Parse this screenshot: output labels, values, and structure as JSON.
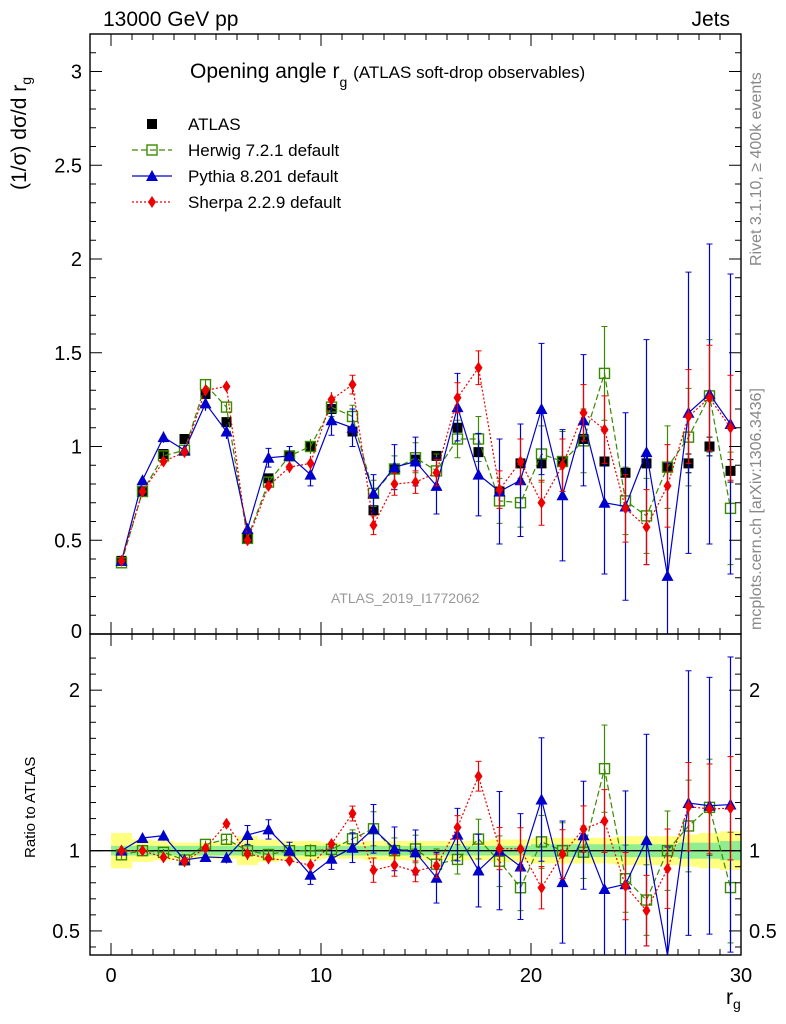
{
  "header": {
    "energy": "13000 GeV pp",
    "category": "Jets"
  },
  "side_notes": {
    "rivet": "Rivet 3.1.10, ≥ 400k events",
    "mcplots": "mcplots.cern.ch [arXiv:1306.3436]"
  },
  "chart_data": [
    {
      "type": "scatter",
      "title_main": "Opening angle r",
      "title_sub": "g",
      "title_extra": "(ATLAS soft-drop observables)",
      "ylabel_main": "(1/σ) dσ/d r",
      "ylabel_sub": "g",
      "xlim": [
        -1,
        30
      ],
      "ylim": [
        0,
        3.2
      ],
      "yticks": [
        {
          "v": 0.5,
          "label": "0.5"
        },
        {
          "v": 1,
          "label": "1"
        },
        {
          "v": 1.5,
          "label": "1.5"
        },
        {
          "v": 2,
          "label": "2"
        },
        {
          "v": 2.5,
          "label": "2.5"
        },
        {
          "v": 3,
          "label": "3"
        }
      ],
      "ytick_bottom_label": "0",
      "annotation": "ATLAS_2019_I1772062",
      "legend_position": "top-left",
      "x": [
        0.5,
        1.5,
        2.5,
        3.5,
        4.5,
        5.5,
        6.5,
        7.5,
        8.5,
        9.5,
        10.5,
        11.5,
        12.5,
        13.5,
        14.5,
        15.5,
        16.5,
        17.5,
        18.5,
        19.5,
        20.5,
        21.5,
        22.5,
        23.5,
        24.5,
        25.5,
        26.5,
        27.5,
        28.5,
        29.5
      ],
      "series": [
        {
          "name": "ATLAS",
          "color": "#000000",
          "marker": "square-filled",
          "line": "none",
          "values": [
            0.39,
            0.76,
            0.96,
            1.04,
            1.28,
            1.13,
            0.51,
            0.83,
            0.95,
            1.0,
            1.2,
            1.08,
            0.66,
            0.88,
            0.93,
            0.95,
            1.1,
            0.97,
            0.76,
            0.91,
            0.91,
            0.92,
            1.04,
            0.92,
            0.86,
            0.91,
            0.89,
            0.91,
            1.0,
            0.87
          ],
          "errors": [
            0.01,
            0.01,
            0.02,
            0.02,
            0.02,
            0.02,
            0.01,
            0.02,
            0.02,
            0.02,
            0.02,
            0.02,
            0.02,
            0.02,
            0.02,
            0.02,
            0.03,
            0.03,
            0.03,
            0.03,
            0.03,
            0.03,
            0.03,
            0.03,
            0.03,
            0.03,
            0.04,
            0.05,
            0.05,
            0.06
          ]
        },
        {
          "name": "Herwig 7.2.1 default",
          "color": "#3a8a00",
          "marker": "square-open",
          "line": "dashed",
          "values": [
            0.38,
            0.76,
            0.95,
            0.98,
            1.33,
            1.21,
            0.51,
            0.81,
            0.95,
            1.0,
            1.21,
            1.16,
            0.75,
            0.88,
            0.94,
            0.87,
            1.04,
            1.04,
            0.71,
            0.7,
            0.96,
            0.92,
            1.03,
            1.39,
            0.71,
            0.63,
            0.89,
            1.05,
            1.27,
            0.67
          ],
          "errors": [
            0.01,
            0.02,
            0.02,
            0.03,
            0.03,
            0.03,
            0.02,
            0.03,
            0.03,
            0.04,
            0.05,
            0.06,
            0.07,
            0.07,
            0.08,
            0.09,
            0.1,
            0.12,
            0.12,
            0.13,
            0.15,
            0.16,
            0.17,
            0.25,
            0.18,
            0.2,
            0.22,
            0.26,
            0.3,
            0.3
          ]
        },
        {
          "name": "Pythia 8.201 default",
          "color": "#0000cc",
          "marker": "triangle",
          "line": "solid",
          "values": [
            0.39,
            0.82,
            1.05,
            0.98,
            1.23,
            1.08,
            0.56,
            0.94,
            0.95,
            0.85,
            1.14,
            1.1,
            0.75,
            0.89,
            0.92,
            0.79,
            1.21,
            0.85,
            0.76,
            0.82,
            1.2,
            0.74,
            1.14,
            0.7,
            0.68,
            0.97,
            0.31,
            1.18,
            1.28,
            1.12
          ],
          "errors": [
            0.01,
            0.02,
            0.03,
            0.03,
            0.04,
            0.04,
            0.03,
            0.05,
            0.05,
            0.06,
            0.08,
            0.1,
            0.1,
            0.12,
            0.13,
            0.15,
            0.18,
            0.22,
            0.28,
            0.3,
            0.35,
            0.35,
            0.35,
            0.38,
            0.5,
            0.6,
            0.6,
            0.75,
            0.8,
            0.8
          ]
        },
        {
          "name": "Sherpa 2.2.9 default",
          "color": "#ee0000",
          "marker": "diamond",
          "line": "dotted",
          "values": [
            0.39,
            0.76,
            0.92,
            0.97,
            1.3,
            1.32,
            0.5,
            0.79,
            0.89,
            0.91,
            1.25,
            1.33,
            0.58,
            0.8,
            0.81,
            0.86,
            1.26,
            1.42,
            0.77,
            0.92,
            0.7,
            0.9,
            1.18,
            1.09,
            0.67,
            0.57,
            0.79,
            1.16,
            1.26,
            1.1
          ],
          "errors": [
            0.01,
            0.02,
            0.02,
            0.02,
            0.03,
            0.03,
            0.02,
            0.03,
            0.03,
            0.04,
            0.04,
            0.05,
            0.05,
            0.06,
            0.06,
            0.07,
            0.08,
            0.09,
            0.1,
            0.12,
            0.12,
            0.14,
            0.15,
            0.18,
            0.18,
            0.2,
            0.22,
            0.25,
            0.28,
            0.28
          ]
        }
      ]
    },
    {
      "type": "scatter",
      "ylabel": "Ratio to ATLAS",
      "xlabel_main": "r",
      "xlabel_sub": "g",
      "xlim": [
        -1,
        30
      ],
      "ylim": [
        0.35,
        2.35
      ],
      "yticks_left": [
        {
          "v": 0.5,
          "label": "0.5"
        },
        {
          "v": 1,
          "label": "1"
        },
        {
          "v": 2,
          "label": "2"
        }
      ],
      "yticks_right": [
        {
          "v": 0.5,
          "label": "0.5"
        },
        {
          "v": 1,
          "label": "1"
        },
        {
          "v": 2,
          "label": "2"
        }
      ],
      "xticks": [
        {
          "v": 0,
          "label": "0"
        },
        {
          "v": 10,
          "label": "10"
        },
        {
          "v": 20,
          "label": "20"
        },
        {
          "v": 30,
          "label": "30"
        }
      ],
      "band_inner_color": "#90ee90",
      "band_outer_color": "#ffff80",
      "band_inner": [
        0.03,
        0.03,
        0.03,
        0.03,
        0.03,
        0.03,
        0.03,
        0.03,
        0.03,
        0.03,
        0.03,
        0.03,
        0.03,
        0.03,
        0.03,
        0.03,
        0.03,
        0.03,
        0.03,
        0.03,
        0.04,
        0.04,
        0.04,
        0.04,
        0.04,
        0.04,
        0.04,
        0.05,
        0.05,
        0.06
      ],
      "band_outer": [
        0.11,
        0.07,
        0.06,
        0.05,
        0.05,
        0.05,
        0.09,
        0.07,
        0.06,
        0.06,
        0.05,
        0.05,
        0.06,
        0.06,
        0.06,
        0.06,
        0.06,
        0.06,
        0.07,
        0.07,
        0.08,
        0.08,
        0.08,
        0.08,
        0.09,
        0.09,
        0.09,
        0.1,
        0.11,
        0.12
      ]
    }
  ]
}
